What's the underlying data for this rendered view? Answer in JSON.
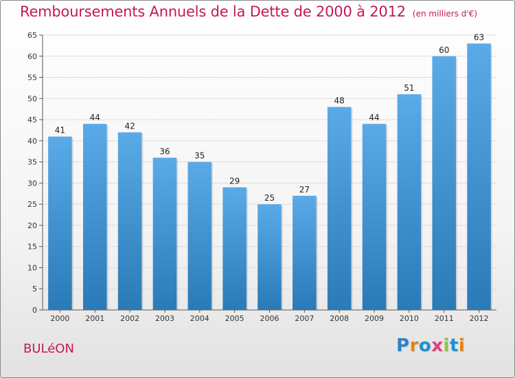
{
  "title": "Remboursements Annuels de la Dette de 2000 à 2012",
  "unit_note": "(en milliers d'€)",
  "commune": "BULéON",
  "logo": {
    "text": "Proxiti",
    "letter_colors": [
      "#2b84c8",
      "#e2821c",
      "#1f8fd0",
      "#e23d7a",
      "#8cc63e",
      "#1f8fd0",
      "#e2821c"
    ]
  },
  "colors": {
    "title": "#c2185b",
    "bar_top": "#5aaae8",
    "bar_bottom": "#2a7ab8",
    "grid": "#dddddd"
  },
  "chart_data": {
    "type": "bar",
    "categories": [
      "2000",
      "2001",
      "2002",
      "2003",
      "2004",
      "2005",
      "2006",
      "2007",
      "2008",
      "2009",
      "2010",
      "2011",
      "2012"
    ],
    "values": [
      41,
      44,
      42,
      36,
      35,
      29,
      25,
      27,
      48,
      44,
      51,
      60,
      63
    ],
    "yticks": [
      0,
      5,
      10,
      15,
      20,
      25,
      30,
      35,
      40,
      45,
      50,
      55,
      60,
      65
    ],
    "ylim": [
      0,
      65
    ],
    "grid": true,
    "data_labels": true
  }
}
